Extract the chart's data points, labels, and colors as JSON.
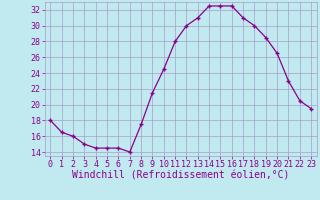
{
  "x": [
    0,
    1,
    2,
    3,
    4,
    5,
    6,
    7,
    8,
    9,
    10,
    11,
    12,
    13,
    14,
    15,
    16,
    17,
    18,
    19,
    20,
    21,
    22,
    23
  ],
  "y": [
    18,
    16.5,
    16,
    15,
    14.5,
    14.5,
    14.5,
    14,
    17.5,
    21.5,
    24.5,
    28,
    30,
    31,
    32.5,
    32.5,
    32.5,
    31,
    30,
    28.5,
    26.5,
    23,
    20.5,
    19.5
  ],
  "line_color": "#8b008b",
  "marker": "+",
  "bg_color": "#c0eaf0",
  "grid_color": "#a89cc8",
  "xlabel": "Windchill (Refroidissement éolien,°C)",
  "xlabel_color": "#8b008b",
  "tick_color": "#8b008b",
  "ylim": [
    13.5,
    33
  ],
  "xlim": [
    -0.5,
    23.5
  ],
  "yticks": [
    14,
    16,
    18,
    20,
    22,
    24,
    26,
    28,
    30,
    32
  ],
  "xticks": [
    0,
    1,
    2,
    3,
    4,
    5,
    6,
    7,
    8,
    9,
    10,
    11,
    12,
    13,
    14,
    15,
    16,
    17,
    18,
    19,
    20,
    21,
    22,
    23
  ],
  "tick_fontsize": 6.0,
  "label_fontsize": 7.0
}
